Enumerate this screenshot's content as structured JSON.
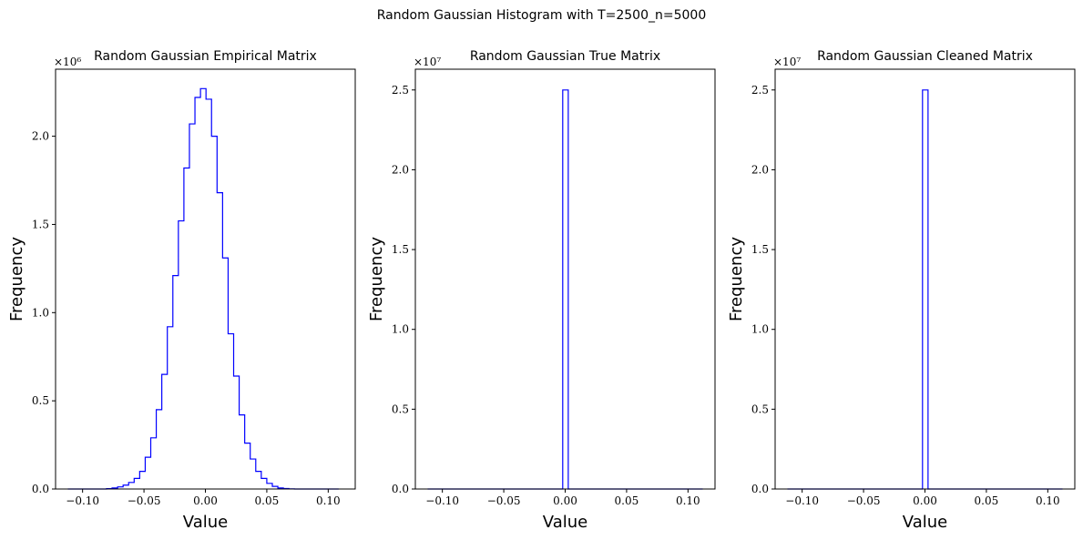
{
  "figure": {
    "suptitle": "Random Gaussian Histogram with T=2500_n=5000"
  },
  "chart_data": [
    {
      "type": "histogram",
      "title": "Random Gaussian Empirical Matrix",
      "xlabel": "Value",
      "ylabel": "Frequency",
      "y_scale_label": "×10⁶",
      "y_scale": 1000000,
      "xlim": [
        -0.122,
        0.122
      ],
      "ylim": [
        0,
        2.38
      ],
      "xticks": [
        -0.1,
        -0.05,
        0.0,
        0.05,
        0.1
      ],
      "xtick_labels": [
        "−0.10",
        "−0.05",
        "0.00",
        "0.05",
        "0.10"
      ],
      "yticks": [
        0.0,
        0.5,
        1.0,
        1.5,
        2.0
      ],
      "ytick_labels": [
        "0.0",
        "0.5",
        "1.0",
        "1.5",
        "2.0"
      ],
      "histtype": "step",
      "color": "#0000ff",
      "bin_edges": [
        -0.112,
        -0.1075,
        -0.103,
        -0.0985,
        -0.094,
        -0.0895,
        -0.085,
        -0.0805,
        -0.076,
        -0.0715,
        -0.067,
        -0.0625,
        -0.058,
        -0.0535,
        -0.049,
        -0.0445,
        -0.04,
        -0.0355,
        -0.031,
        -0.0265,
        -0.022,
        -0.0175,
        -0.013,
        -0.0085,
        -0.004,
        0.0005,
        0.005,
        0.0095,
        0.014,
        0.0185,
        0.023,
        0.0275,
        0.032,
        0.0365,
        0.041,
        0.0455,
        0.05,
        0.0545,
        0.059,
        0.0635,
        0.068,
        0.0725,
        0.077,
        0.0815,
        0.086,
        0.0905,
        0.095,
        0.0995,
        0.104,
        0.1085
      ],
      "counts": [
        0.0,
        0.0,
        0.0,
        0.0,
        0.0,
        0.0,
        0.0,
        0.002,
        0.006,
        0.012,
        0.022,
        0.037,
        0.06,
        0.1,
        0.18,
        0.29,
        0.45,
        0.65,
        0.92,
        1.21,
        1.52,
        1.82,
        2.07,
        2.22,
        2.27,
        2.21,
        2.0,
        1.68,
        1.31,
        0.88,
        0.64,
        0.42,
        0.26,
        0.17,
        0.1,
        0.06,
        0.032,
        0.015,
        0.006,
        0.003,
        0.001,
        0.0,
        0.0,
        0.0,
        0.0,
        0.0,
        0.0,
        0.0,
        0.0
      ]
    },
    {
      "type": "histogram",
      "title": "Random Gaussian True Matrix",
      "xlabel": "Value",
      "ylabel": "Frequency",
      "y_scale_label": "×10⁷",
      "y_scale": 10000000,
      "xlim": [
        -0.122,
        0.122
      ],
      "ylim": [
        0,
        2.63
      ],
      "xticks": [
        -0.1,
        -0.05,
        0.0,
        0.05,
        0.1
      ],
      "xtick_labels": [
        "−0.10",
        "−0.05",
        "0.00",
        "0.05",
        "0.10"
      ],
      "yticks": [
        0.0,
        0.5,
        1.0,
        1.5,
        2.0,
        2.5
      ],
      "ytick_labels": [
        "0.0",
        "0.5",
        "1.0",
        "1.5",
        "2.0",
        "2.5"
      ],
      "histtype": "step",
      "color": "#0000ff",
      "bin_edges": [
        -0.112,
        -0.002,
        0.0025,
        0.112
      ],
      "counts": [
        0.0,
        2.5,
        0.0
      ]
    },
    {
      "type": "histogram",
      "title": "Random Gaussian Cleaned Matrix",
      "xlabel": "Value",
      "ylabel": "Frequency",
      "y_scale_label": "×10⁷",
      "y_scale": 10000000,
      "xlim": [
        -0.122,
        0.122
      ],
      "ylim": [
        0,
        2.63
      ],
      "xticks": [
        -0.1,
        -0.05,
        0.0,
        0.05,
        0.1
      ],
      "xtick_labels": [
        "−0.10",
        "−0.05",
        "0.00",
        "0.05",
        "0.10"
      ],
      "yticks": [
        0.0,
        0.5,
        1.0,
        1.5,
        2.0,
        2.5
      ],
      "ytick_labels": [
        "0.0",
        "0.5",
        "1.0",
        "1.5",
        "2.0",
        "2.5"
      ],
      "histtype": "step",
      "color": "#0000ff",
      "bin_edges": [
        -0.112,
        -0.002,
        0.0025,
        0.112
      ],
      "counts": [
        0.0,
        2.5,
        0.0
      ]
    }
  ]
}
